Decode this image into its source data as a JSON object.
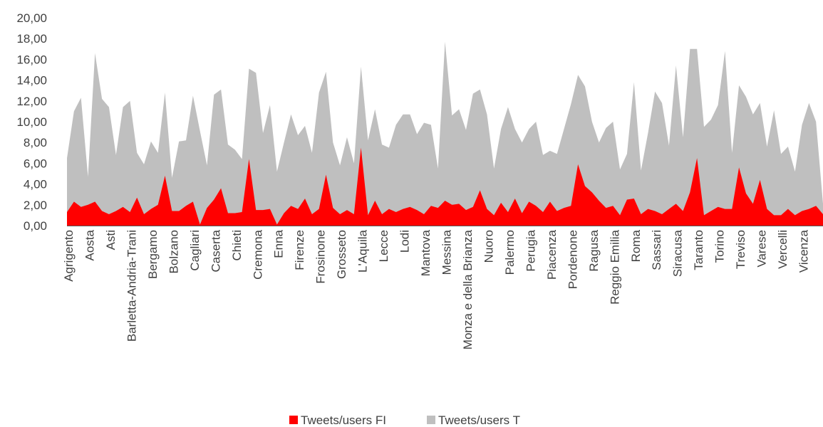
{
  "chart_data": {
    "type": "area",
    "title": "",
    "xlabel": "",
    "ylabel": "",
    "ylim": [
      0,
      20
    ],
    "yticks": [
      "0,00",
      "2,00",
      "4,00",
      "6,00",
      "8,00",
      "10,00",
      "12,00",
      "14,00",
      "16,00",
      "18,00",
      "20,00"
    ],
    "grid": false,
    "legend_position": "bottom",
    "x_labels": [
      "Agrigento",
      "Aosta",
      "Asti",
      "Barletta-Andria-Trani",
      "Bergamo",
      "Bolzano",
      "Cagliari",
      "Caserta",
      "Chieti",
      "Cremona",
      "Enna",
      "Firenze",
      "Frosinone",
      "Grosseto",
      "L'Aquila",
      "Lecce",
      "Lodi",
      "Mantova",
      "Messina",
      "Monza e della Brianza",
      "Nuoro",
      "Palermo",
      "Perugia",
      "Piacenza",
      "Pordenone",
      "Ragusa",
      "Reggio Emilia",
      "Roma",
      "Sassari",
      "Siracusa",
      "Taranto",
      "Torino",
      "Treviso",
      "Varese",
      "Vercelli",
      "Vicenza"
    ],
    "series": [
      {
        "name": "Tweets/users T",
        "color": "#bfbfbf",
        "values": [
          6.5,
          11.0,
          12.3,
          4.7,
          16.6,
          12.2,
          11.4,
          6.8,
          11.4,
          12.0,
          7.0,
          5.9,
          8.1,
          7.0,
          12.8,
          4.6,
          8.1,
          8.2,
          12.5,
          9.1,
          5.8,
          12.6,
          13.1,
          7.8,
          7.3,
          6.4,
          15.1,
          14.7,
          8.9,
          11.6,
          5.2,
          8.0,
          10.7,
          8.7,
          9.6,
          7.0,
          12.8,
          14.8,
          8.0,
          5.8,
          8.5,
          6.0,
          15.3,
          8.2,
          11.2,
          7.8,
          7.5,
          9.7,
          10.7,
          10.7,
          8.8,
          9.9,
          9.7,
          5.5,
          17.7,
          10.6,
          11.2,
          9.2,
          12.7,
          13.1,
          10.7,
          5.5,
          9.3,
          11.4,
          9.3,
          8.0,
          9.3,
          10.0,
          6.8,
          7.2,
          6.9,
          9.3,
          11.7,
          14.5,
          13.4,
          10.0,
          8.0,
          9.4,
          10.0,
          5.4,
          6.9,
          13.8,
          5.3,
          8.9,
          12.9,
          11.8,
          7.7,
          15.4,
          8.5,
          17.0,
          17.0,
          9.5,
          10.2,
          11.6,
          16.8,
          7.0,
          13.5,
          12.4,
          10.7,
          11.8,
          7.6,
          11.1,
          6.9,
          7.6,
          5.2,
          9.7,
          11.8,
          10.0,
          2.1
        ]
      },
      {
        "name": "Tweets/users FI",
        "color": "#ff0000",
        "values": [
          1.3,
          2.3,
          1.8,
          2.0,
          2.3,
          1.4,
          1.1,
          1.4,
          1.8,
          1.3,
          2.7,
          1.1,
          1.6,
          2.0,
          4.8,
          1.4,
          1.4,
          1.9,
          2.3,
          0.1,
          1.7,
          2.5,
          3.6,
          1.2,
          1.2,
          1.3,
          6.4,
          1.5,
          1.5,
          1.6,
          0.1,
          1.2,
          1.9,
          1.6,
          2.6,
          1.1,
          1.6,
          4.9,
          1.7,
          1.1,
          1.5,
          1.1,
          7.5,
          1.0,
          2.4,
          1.1,
          1.6,
          1.3,
          1.6,
          1.8,
          1.5,
          1.1,
          1.9,
          1.7,
          2.4,
          2.0,
          2.1,
          1.5,
          1.8,
          3.4,
          1.6,
          1.0,
          2.2,
          1.3,
          2.6,
          1.2,
          2.3,
          1.9,
          1.3,
          2.3,
          1.4,
          1.7,
          1.9,
          5.9,
          3.8,
          3.2,
          2.4,
          1.7,
          1.9,
          1.0,
          2.5,
          2.6,
          1.1,
          1.6,
          1.4,
          1.1,
          1.6,
          2.1,
          1.4,
          3.2,
          6.5,
          1.0,
          1.4,
          1.8,
          1.6,
          1.6,
          5.6,
          3.1,
          2.1,
          4.4,
          1.6,
          1.0,
          1.0,
          1.6,
          1.0,
          1.4,
          1.6,
          1.9,
          1.1
        ]
      }
    ]
  }
}
